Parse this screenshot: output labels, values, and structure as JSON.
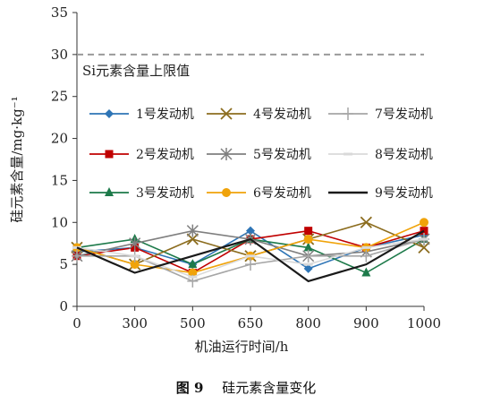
{
  "chart_data": {
    "type": "line",
    "categories": [
      "0",
      "300",
      "500",
      "650",
      "800",
      "900",
      "1000"
    ],
    "xlabel": "机油运行时间/h",
    "ylabel": "硅元素含量/mg·kg⁻¹",
    "ylim": [
      0,
      35
    ],
    "yticks": [
      0,
      5,
      10,
      15,
      20,
      25,
      30,
      35
    ],
    "grid": false,
    "legend_position": "inside-middle",
    "reference_line": {
      "value": 30,
      "label": "Si元素含量上限值",
      "color": "#9a9a9a",
      "style": "dashed"
    },
    "series": [
      {
        "name": "1号发动机",
        "color": "#2e75b6",
        "marker": "diamond",
        "values": [
          6.5,
          7.0,
          5.0,
          9.0,
          4.5,
          7.0,
          8.5
        ]
      },
      {
        "name": "2号发动机",
        "color": "#c00000",
        "marker": "square",
        "values": [
          6.0,
          7.0,
          4.0,
          8.0,
          9.0,
          7.0,
          9.0
        ]
      },
      {
        "name": "3号发动机",
        "color": "#1d7a4a",
        "marker": "triangle",
        "values": [
          7.0,
          8.0,
          5.0,
          8.0,
          7.0,
          4.0,
          8.0
        ]
      },
      {
        "name": "4号发动机",
        "color": "#8c6d1f",
        "marker": "x",
        "values": [
          7.0,
          5.0,
          8.0,
          6.0,
          8.0,
          10.0,
          7.0
        ]
      },
      {
        "name": "5号发动机",
        "color": "#7f7f7f",
        "marker": "star",
        "values": [
          6.0,
          7.5,
          9.0,
          8.0,
          6.0,
          6.5,
          8.0
        ]
      },
      {
        "name": "6号发动机",
        "color": "#f0a30a",
        "marker": "circle",
        "values": [
          7.0,
          5.0,
          4.0,
          6.0,
          8.0,
          7.0,
          10.0
        ]
      },
      {
        "name": "7号发动机",
        "color": "#a6a6a6",
        "marker": "plus",
        "values": [
          6.0,
          6.0,
          3.0,
          5.0,
          6.0,
          6.0,
          8.0
        ]
      },
      {
        "name": "8号发动机",
        "color": "#d9d9d9",
        "marker": "dash",
        "values": [
          7.0,
          6.0,
          3.5,
          6.0,
          5.0,
          7.0,
          8.0
        ]
      },
      {
        "name": "9号发动机",
        "color": "#1a1a1a",
        "marker": "line",
        "values": [
          7.0,
          4.0,
          6.0,
          8.0,
          3.0,
          5.0,
          9.0
        ]
      }
    ]
  },
  "caption": {
    "figure": "图 9",
    "title": "硅元素含量变化"
  }
}
